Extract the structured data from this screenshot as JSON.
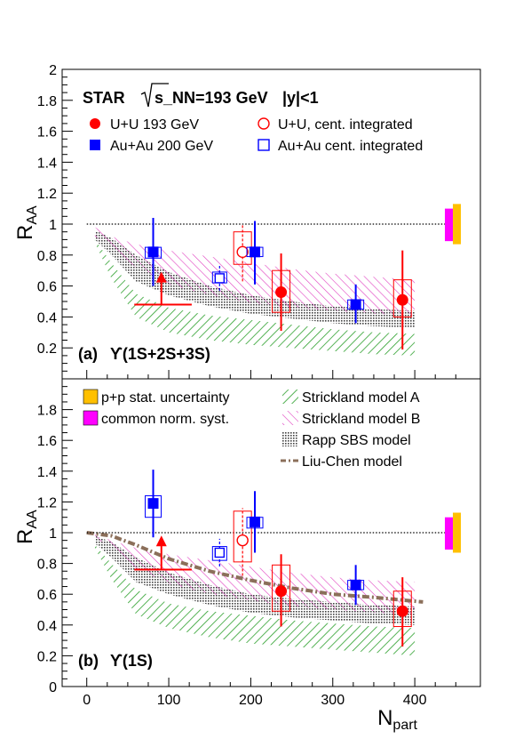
{
  "chart_data": [
    {
      "type": "scatter",
      "panel_label": "(a)",
      "panel_state": "ϒ(1S+2S+3S)",
      "experiment": "STAR",
      "energy_label": "s_NN=193 GeV",
      "rapidity_label": "|y|<1",
      "ylabel": "R_AA",
      "xlim": [
        -30,
        480
      ],
      "ylim": [
        0,
        2
      ],
      "yticks": [
        "0.2",
        "0.4",
        "0.6",
        "0.8",
        "1",
        "1.2",
        "1.4",
        "1.6",
        "1.8",
        "2"
      ],
      "reference_line": 1,
      "legend": [
        {
          "label": "U+U 193 GeV",
          "style": "filled-circle",
          "color": "#ff0000"
        },
        {
          "label": "U+U, cent. integrated",
          "style": "open-circle",
          "color": "#ff0000"
        },
        {
          "label": "Au+Au 200 GeV",
          "style": "filled-square",
          "color": "#0000ff"
        },
        {
          "label": "Au+Au cent. integrated",
          "style": "open-square",
          "color": "#0000ff"
        }
      ],
      "series": [
        {
          "name": "U+U 193 GeV",
          "style": "filled-circle",
          "color": "#ff0000",
          "points": [
            {
              "x": 237,
              "y": 0.56,
              "stat_lo": 0.31,
              "stat_hi": 0.81,
              "sys_lo": 0.43,
              "sys_hi": 0.7
            },
            {
              "x": 385,
              "y": 0.51,
              "stat_lo": 0.19,
              "stat_hi": 0.83,
              "sys_lo": 0.4,
              "sys_hi": 0.64
            }
          ]
        },
        {
          "name": "U+U, cent. integrated",
          "style": "open-circle",
          "color": "#ff0000",
          "points": [
            {
              "x": 190,
              "y": 0.82,
              "stat_lo": 0.63,
              "stat_hi": 1.0,
              "sys_lo": 0.74,
              "sys_hi": 0.95
            }
          ]
        },
        {
          "name": "Au+Au 200 GeV",
          "style": "filled-square",
          "color": "#0000ff",
          "points": [
            {
              "x": 81,
              "y": 0.82,
              "stat_lo": 0.6,
              "stat_hi": 1.04,
              "sys_lo": 0.78,
              "sys_hi": 0.85
            },
            {
              "x": 205,
              "y": 0.82,
              "stat_lo": 0.61,
              "stat_hi": 1.02,
              "sys_lo": 0.79,
              "sys_hi": 0.85
            },
            {
              "x": 328,
              "y": 0.48,
              "stat_lo": 0.36,
              "stat_hi": 0.61,
              "sys_lo": 0.45,
              "sys_hi": 0.51
            }
          ]
        },
        {
          "name": "Au+Au cent. integrated",
          "style": "open-square",
          "color": "#0000ff",
          "points": [
            {
              "x": 162,
              "y": 0.65,
              "stat_lo": 0.57,
              "stat_hi": 0.73,
              "sys_lo": 0.62,
              "sys_hi": 0.69
            }
          ]
        },
        {
          "name": "upper limit",
          "style": "arrow",
          "color": "#ff0000",
          "points": [
            {
              "x": 91,
              "y": 0.48,
              "x_lo": 58,
              "x_hi": 128,
              "arrow_to": 0.68
            }
          ]
        }
      ],
      "bands": [
        {
          "name": "Strickland model A",
          "style": "hatch-green",
          "x": [
            10,
            30,
            60,
            100,
            150,
            200,
            250,
            300,
            350,
            400
          ],
          "lo": [
            0.88,
            0.65,
            0.4,
            0.3,
            0.25,
            0.22,
            0.2,
            0.18,
            0.16,
            0.15
          ],
          "hi": [
            0.9,
            0.75,
            0.55,
            0.46,
            0.41,
            0.38,
            0.35,
            0.32,
            0.3,
            0.29
          ]
        },
        {
          "name": "Strickland model B",
          "style": "hatch-magenta",
          "x": [
            10,
            30,
            60,
            100,
            150,
            200,
            250,
            300,
            350,
            400
          ],
          "lo": [
            0.92,
            0.85,
            0.72,
            0.61,
            0.54,
            0.49,
            0.46,
            0.44,
            0.42,
            0.41
          ],
          "hi": [
            0.98,
            0.92,
            0.87,
            0.83,
            0.79,
            0.75,
            0.71,
            0.68,
            0.66,
            0.64
          ]
        },
        {
          "name": "Rapp SBS model",
          "style": "dots-gray",
          "x": [
            10,
            30,
            60,
            100,
            150,
            200,
            250,
            300,
            350,
            400
          ],
          "lo": [
            0.9,
            0.8,
            0.63,
            0.54,
            0.47,
            0.42,
            0.39,
            0.36,
            0.34,
            0.33
          ],
          "hi": [
            0.96,
            0.91,
            0.8,
            0.69,
            0.6,
            0.54,
            0.5,
            0.47,
            0.45,
            0.44
          ]
        }
      ],
      "uncertainty_boxes": [
        {
          "name": "p+p stat. uncertainty",
          "color": "#ffc000",
          "lo": 0.87,
          "hi": 1.13
        },
        {
          "name": "common norm. syst.",
          "color": "#ff00ff",
          "lo": 0.89,
          "hi": 1.1
        }
      ]
    },
    {
      "type": "scatter",
      "panel_label": "(b)",
      "panel_state": "ϒ(1S)",
      "xlabel": "N_part",
      "ylabel": "R_AA",
      "xlim": [
        -30,
        480
      ],
      "ylim": [
        0,
        2
      ],
      "xticks": [
        "0",
        "100",
        "200",
        "300",
        "400"
      ],
      "yticks": [
        "0",
        "0.2",
        "0.4",
        "0.6",
        "0.8",
        "1",
        "1.2",
        "1.4",
        "1.6",
        "1.8"
      ],
      "reference_line": 1,
      "legend": [
        {
          "label": "p+p stat. uncertainty",
          "style": "box-gold",
          "color": "#ffc000"
        },
        {
          "label": "common norm. syst.",
          "style": "box-magenta",
          "color": "#ff00ff"
        },
        {
          "label": "Strickland model A",
          "style": "hatch-green",
          "color": "#2ca02c"
        },
        {
          "label": "Strickland model B",
          "style": "hatch-magenta",
          "color": "#e040c0"
        },
        {
          "label": "Rapp SBS model",
          "style": "dots-gray",
          "color": "#555555"
        },
        {
          "label": "Liu-Chen model",
          "style": "dash-dot-brown",
          "color": "#8b6f5a"
        }
      ],
      "series": [
        {
          "name": "U+U 193 GeV",
          "style": "filled-circle",
          "color": "#ff0000",
          "points": [
            {
              "x": 237,
              "y": 0.62,
              "stat_lo": 0.39,
              "stat_hi": 0.86,
              "sys_lo": 0.49,
              "sys_hi": 0.79
            },
            {
              "x": 385,
              "y": 0.49,
              "stat_lo": 0.26,
              "stat_hi": 0.71,
              "sys_lo": 0.39,
              "sys_hi": 0.62
            }
          ]
        },
        {
          "name": "U+U, cent. integrated",
          "style": "open-circle",
          "color": "#ff0000",
          "points": [
            {
              "x": 190,
              "y": 0.95,
              "stat_lo": 0.72,
              "stat_hi": 1.16,
              "sys_lo": 0.81,
              "sys_hi": 1.14
            }
          ]
        },
        {
          "name": "Au+Au 200 GeV",
          "style": "filled-square",
          "color": "#0000ff",
          "points": [
            {
              "x": 81,
              "y": 1.19,
              "stat_lo": 0.97,
              "stat_hi": 1.41,
              "sys_lo": 1.1,
              "sys_hi": 1.24
            },
            {
              "x": 205,
              "y": 1.07,
              "stat_lo": 0.87,
              "stat_hi": 1.27,
              "sys_lo": 1.03,
              "sys_hi": 1.1
            },
            {
              "x": 328,
              "y": 0.66,
              "stat_lo": 0.53,
              "stat_hi": 0.79,
              "sys_lo": 0.63,
              "sys_hi": 0.69
            }
          ]
        },
        {
          "name": "Au+Au cent. integrated",
          "style": "open-square",
          "color": "#0000ff",
          "points": [
            {
              "x": 162,
              "y": 0.87,
              "stat_lo": 0.78,
              "stat_hi": 0.96,
              "sys_lo": 0.82,
              "sys_hi": 0.91
            }
          ]
        },
        {
          "name": "upper limit",
          "style": "arrow",
          "color": "#ff0000",
          "points": [
            {
              "x": 91,
              "y": 0.76,
              "x_lo": 58,
              "x_hi": 128,
              "arrow_to": 0.97
            }
          ]
        }
      ],
      "bands": [
        {
          "name": "Strickland model A",
          "style": "hatch-green",
          "x": [
            10,
            30,
            60,
            100,
            150,
            200,
            250,
            300,
            350,
            400
          ],
          "lo": [
            0.9,
            0.7,
            0.47,
            0.38,
            0.32,
            0.28,
            0.26,
            0.24,
            0.22,
            0.2
          ],
          "hi": [
            0.92,
            0.8,
            0.63,
            0.54,
            0.49,
            0.46,
            0.43,
            0.41,
            0.39,
            0.38
          ]
        },
        {
          "name": "Strickland model B",
          "style": "hatch-magenta",
          "x": [
            10,
            30,
            60,
            100,
            150,
            200,
            250,
            300,
            350,
            400
          ],
          "lo": [
            0.97,
            0.9,
            0.77,
            0.67,
            0.6,
            0.56,
            0.52,
            0.5,
            0.48,
            0.47
          ],
          "hi": [
            0.99,
            0.95,
            0.9,
            0.86,
            0.82,
            0.78,
            0.74,
            0.71,
            0.69,
            0.68
          ]
        },
        {
          "name": "Rapp SBS model",
          "style": "dots-gray",
          "x": [
            10,
            30,
            60,
            100,
            150,
            200,
            250,
            300,
            350,
            400
          ],
          "lo": [
            0.93,
            0.84,
            0.68,
            0.6,
            0.53,
            0.48,
            0.45,
            0.43,
            0.41,
            0.4
          ],
          "hi": [
            0.98,
            0.94,
            0.84,
            0.74,
            0.66,
            0.6,
            0.57,
            0.55,
            0.53,
            0.52
          ]
        }
      ],
      "lines": [
        {
          "name": "Liu-Chen model",
          "style": "dash-dot-brown",
          "x": [
            0,
            30,
            60,
            100,
            150,
            200,
            250,
            300,
            350,
            410
          ],
          "y": [
            1.0,
            0.98,
            0.92,
            0.83,
            0.75,
            0.69,
            0.64,
            0.6,
            0.58,
            0.55
          ]
        }
      ],
      "uncertainty_boxes": [
        {
          "name": "p+p stat. uncertainty",
          "color": "#ffc000",
          "lo": 0.87,
          "hi": 1.13
        },
        {
          "name": "common norm. syst.",
          "color": "#ff00ff",
          "lo": 0.89,
          "hi": 1.1
        }
      ]
    }
  ]
}
